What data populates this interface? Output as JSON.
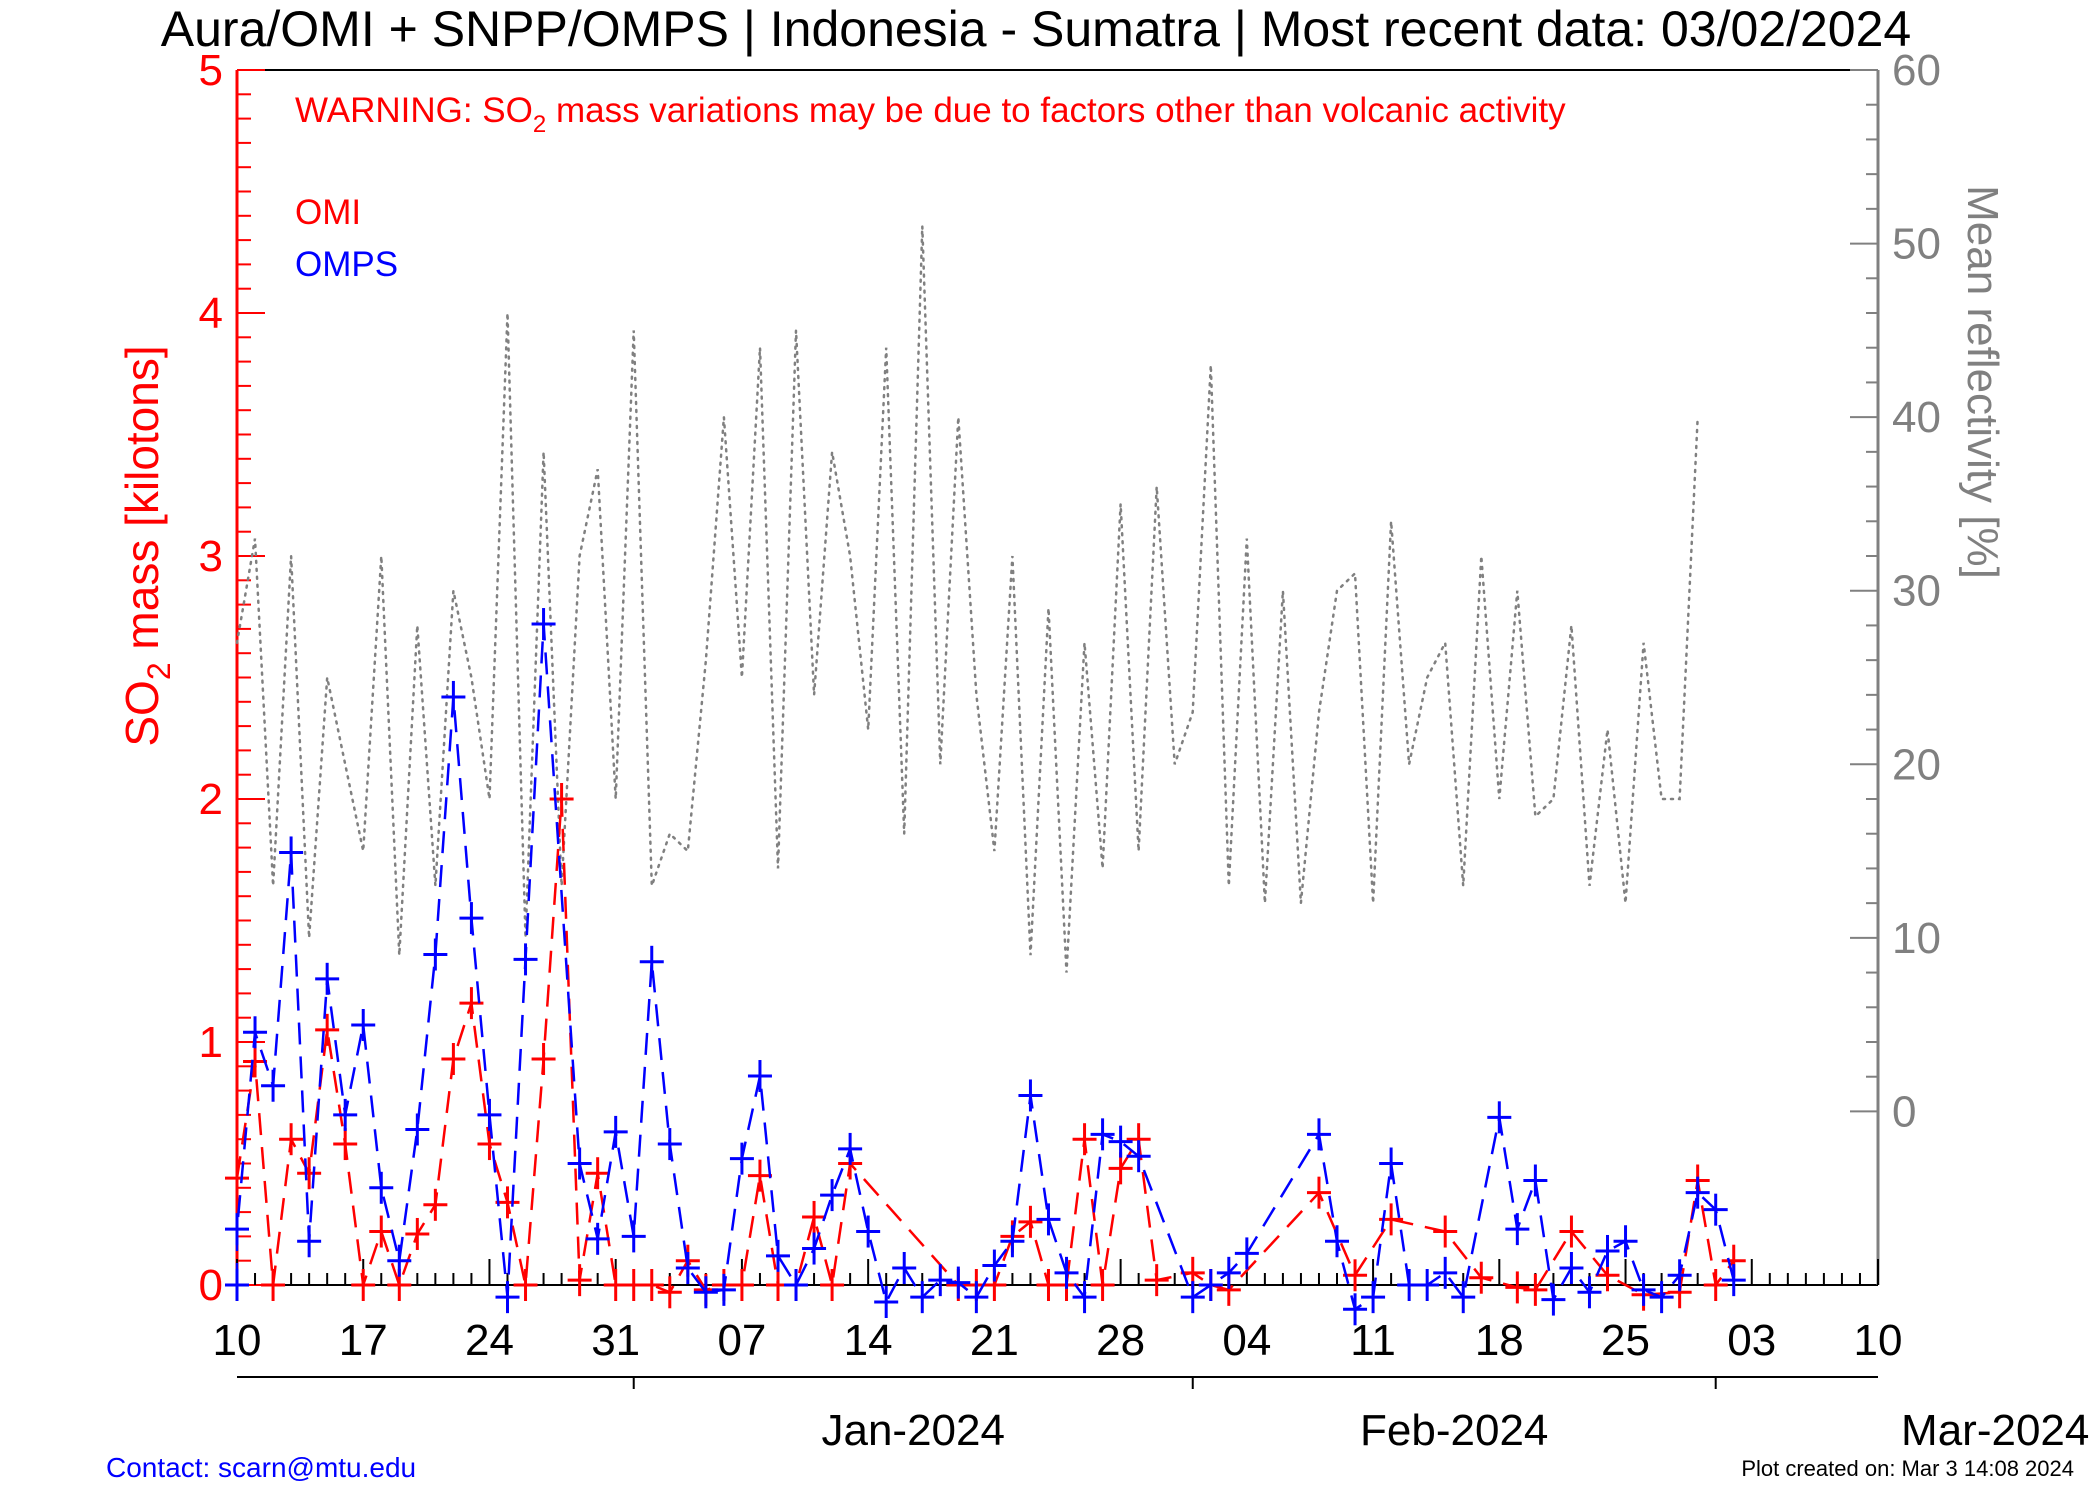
{
  "chart_data": {
    "type": "line",
    "title": "Aura/OMI + SNPP/OMPS | Indonesia - Sumatra | Most recent data: 03/02/2024",
    "warning": {
      "prefix": "WARNING: SO",
      "sub": "2",
      "suffix": " mass variations may be due to factors other than volcanic activity"
    },
    "ylabel_left": {
      "prefix": "SO",
      "sub": "2",
      "suffix": " mass [kilotons]"
    },
    "ylabel_right": "Mean reflectivity [%]",
    "ylim_left": [
      0,
      5
    ],
    "ylim_right": [
      -10,
      60
    ],
    "right_ticks": [
      0,
      10,
      20,
      30,
      40,
      50,
      60
    ],
    "left_ticks": [
      0,
      1,
      2,
      3,
      4,
      5
    ],
    "x_start": "2023-12-10",
    "x_end": "2024-03-10",
    "day_tick_labels": [
      "10",
      "17",
      "24",
      "31",
      "07",
      "14",
      "21",
      "28",
      "04",
      "11",
      "18",
      "25",
      "03",
      "10"
    ],
    "month_labels": [
      "Jan-2024",
      "Feb-2024",
      "Mar-2024"
    ],
    "series": [
      {
        "name": "OMI",
        "color": "#ff0000",
        "values": [
          [
            "2023-12-10",
            0.44
          ],
          [
            "2023-12-11",
            0.92
          ],
          [
            "2023-12-12",
            0.0
          ],
          [
            "2023-12-13",
            0.6
          ],
          [
            "2023-12-14",
            0.46
          ],
          [
            "2023-12-15",
            1.05
          ],
          [
            "2023-12-16",
            0.58
          ],
          [
            "2023-12-17",
            0.0
          ],
          [
            "2023-12-18",
            0.22
          ],
          [
            "2023-12-19",
            0.0
          ],
          [
            "2023-12-20",
            0.21
          ],
          [
            "2023-12-21",
            0.33
          ],
          [
            "2023-12-22",
            0.93
          ],
          [
            "2023-12-23",
            1.16
          ],
          [
            "2023-12-24",
            0.58
          ],
          [
            "2023-12-25",
            0.34
          ],
          [
            "2023-12-26",
            0.0
          ],
          [
            "2023-12-27",
            0.93
          ],
          [
            "2023-12-28",
            2.0
          ],
          [
            "2023-12-29",
            0.02
          ],
          [
            "2023-12-30",
            0.46
          ],
          [
            "2023-12-31",
            0.0
          ],
          [
            "2024-01-01",
            0.0
          ],
          [
            "2024-01-02",
            0.0
          ],
          [
            "2024-01-03",
            -0.03
          ],
          [
            "2024-01-04",
            0.1
          ],
          [
            "2024-01-05",
            -0.02
          ],
          [
            "2024-01-06",
            0.0
          ],
          [
            "2024-01-07",
            0.0
          ],
          [
            "2024-01-08",
            0.45
          ],
          [
            "2024-01-09",
            0.0
          ],
          [
            "2024-01-10",
            0.0
          ],
          [
            "2024-01-11",
            0.28
          ],
          [
            "2024-01-12",
            0.0
          ],
          [
            "2024-01-13",
            0.5
          ],
          [
            "2024-01-19",
            0.0
          ],
          [
            "2024-01-20",
            0.0
          ],
          [
            "2024-01-21",
            0.0
          ],
          [
            "2024-01-22",
            0.2
          ],
          [
            "2024-01-23",
            0.26
          ],
          [
            "2024-01-24",
            0.0
          ],
          [
            "2024-01-25",
            0.0
          ],
          [
            "2024-01-26",
            0.6
          ],
          [
            "2024-01-27",
            0.0
          ],
          [
            "2024-01-28",
            0.48
          ],
          [
            "2024-01-29",
            0.6
          ],
          [
            "2024-01-30",
            0.02
          ],
          [
            "2024-02-01",
            0.05
          ],
          [
            "2024-02-02",
            0.0
          ],
          [
            "2024-02-03",
            -0.02
          ],
          [
            "2024-02-08",
            0.38
          ],
          [
            "2024-02-10",
            0.04
          ],
          [
            "2024-02-12",
            0.27
          ],
          [
            "2024-02-15",
            0.22
          ],
          [
            "2024-02-17",
            0.03
          ],
          [
            "2024-02-19",
            -0.01
          ],
          [
            "2024-02-20",
            -0.02
          ],
          [
            "2024-02-22",
            0.22
          ],
          [
            "2024-02-24",
            0.04
          ],
          [
            "2024-02-26",
            -0.04
          ],
          [
            "2024-02-28",
            -0.03
          ],
          [
            "2024-02-29",
            0.43
          ],
          [
            "2024-03-01",
            0.0
          ],
          [
            "2024-03-02",
            0.1
          ]
        ]
      },
      {
        "name": "OMPS",
        "color": "#0000ff",
        "values": [
          [
            "2023-12-10",
            0.0
          ],
          [
            "2023-12-10",
            0.23
          ],
          [
            "2023-12-11",
            1.04
          ],
          [
            "2023-12-12",
            0.82
          ],
          [
            "2023-12-13",
            1.78
          ],
          [
            "2023-12-14",
            0.18
          ],
          [
            "2023-12-15",
            1.26
          ],
          [
            "2023-12-16",
            0.7
          ],
          [
            "2023-12-17",
            1.07
          ],
          [
            "2023-12-18",
            0.4
          ],
          [
            "2023-12-19",
            0.1
          ],
          [
            "2023-12-20",
            0.64
          ],
          [
            "2023-12-21",
            1.36
          ],
          [
            "2023-12-22",
            2.42
          ],
          [
            "2023-12-23",
            1.51
          ],
          [
            "2023-12-24",
            0.7
          ],
          [
            "2023-12-25",
            -0.05
          ],
          [
            "2023-12-26",
            1.34
          ],
          [
            "2023-12-27",
            2.72
          ],
          [
            "2023-12-29",
            0.5
          ],
          [
            "2023-12-30",
            0.19
          ],
          [
            "2023-12-31",
            0.63
          ],
          [
            "2024-01-01",
            0.2
          ],
          [
            "2024-01-02",
            1.33
          ],
          [
            "2024-01-03",
            0.58
          ],
          [
            "2024-01-04",
            0.07
          ],
          [
            "2024-01-05",
            -0.03
          ],
          [
            "2024-01-06",
            -0.02
          ],
          [
            "2024-01-07",
            0.52
          ],
          [
            "2024-01-08",
            0.86
          ],
          [
            "2024-01-09",
            0.12
          ],
          [
            "2024-01-10",
            0.0
          ],
          [
            "2024-01-11",
            0.15
          ],
          [
            "2024-01-12",
            0.37
          ],
          [
            "2024-01-13",
            0.56
          ],
          [
            "2024-01-14",
            0.22
          ],
          [
            "2024-01-15",
            -0.07
          ],
          [
            "2024-01-16",
            0.07
          ],
          [
            "2024-01-17",
            -0.05
          ],
          [
            "2024-01-18",
            0.02
          ],
          [
            "2024-01-19",
            0.01
          ],
          [
            "2024-01-20",
            -0.05
          ],
          [
            "2024-01-21",
            0.08
          ],
          [
            "2024-01-22",
            0.18
          ],
          [
            "2024-01-23",
            0.78
          ],
          [
            "2024-01-24",
            0.27
          ],
          [
            "2024-01-25",
            0.05
          ],
          [
            "2024-01-26",
            -0.05
          ],
          [
            "2024-01-27",
            0.62
          ],
          [
            "2024-01-28",
            0.59
          ],
          [
            "2024-01-29",
            0.53
          ],
          [
            "2024-02-01",
            -0.05
          ],
          [
            "2024-02-02",
            0.0
          ],
          [
            "2024-02-03",
            0.05
          ],
          [
            "2024-02-04",
            0.13
          ],
          [
            "2024-02-08",
            0.62
          ],
          [
            "2024-02-09",
            0.18
          ],
          [
            "2024-02-10",
            -0.1
          ],
          [
            "2024-02-11",
            -0.05
          ],
          [
            "2024-02-12",
            0.5
          ],
          [
            "2024-02-13",
            0.0
          ],
          [
            "2024-02-14",
            0.0
          ],
          [
            "2024-02-15",
            0.05
          ],
          [
            "2024-02-16",
            -0.05
          ],
          [
            "2024-02-18",
            0.69
          ],
          [
            "2024-02-19",
            0.23
          ],
          [
            "2024-02-20",
            0.43
          ],
          [
            "2024-02-21",
            -0.06
          ],
          [
            "2024-02-22",
            0.07
          ],
          [
            "2024-02-23",
            -0.03
          ],
          [
            "2024-02-24",
            0.14
          ],
          [
            "2024-02-25",
            0.18
          ],
          [
            "2024-02-26",
            -0.02
          ],
          [
            "2024-02-27",
            -0.05
          ],
          [
            "2024-02-28",
            0.04
          ],
          [
            "2024-02-29",
            0.38
          ],
          [
            "2024-03-01",
            0.31
          ],
          [
            "2024-03-02",
            0.02
          ]
        ]
      }
    ],
    "reflectivity": {
      "color": "#808080",
      "values": [
        [
          "2023-12-10",
          27
        ],
        [
          "2023-12-11",
          33
        ],
        [
          "2023-12-12",
          13
        ],
        [
          "2023-12-13",
          32
        ],
        [
          "2023-12-14",
          10
        ],
        [
          "2023-12-15",
          25
        ],
        [
          "2023-12-16",
          20
        ],
        [
          "2023-12-17",
          15
        ],
        [
          "2023-12-18",
          32
        ],
        [
          "2023-12-19",
          9
        ],
        [
          "2023-12-20",
          28
        ],
        [
          "2023-12-21",
          13
        ],
        [
          "2023-12-22",
          30
        ],
        [
          "2023-12-23",
          25
        ],
        [
          "2023-12-24",
          18
        ],
        [
          "2023-12-25",
          46
        ],
        [
          "2023-12-26",
          10
        ],
        [
          "2023-12-27",
          38
        ],
        [
          "2023-12-28",
          13
        ],
        [
          "2023-12-29",
          32
        ],
        [
          "2023-12-30",
          37
        ],
        [
          "2023-12-31",
          18
        ],
        [
          "2024-01-01",
          45
        ],
        [
          "2024-01-02",
          13
        ],
        [
          "2024-01-03",
          16
        ],
        [
          "2024-01-04",
          15
        ],
        [
          "2024-01-05",
          26
        ],
        [
          "2024-01-06",
          40
        ],
        [
          "2024-01-07",
          25
        ],
        [
          "2024-01-08",
          44
        ],
        [
          "2024-01-09",
          14
        ],
        [
          "2024-01-10",
          45
        ],
        [
          "2024-01-11",
          24
        ],
        [
          "2024-01-12",
          38
        ],
        [
          "2024-01-13",
          32
        ],
        [
          "2024-01-14",
          22
        ],
        [
          "2024-01-15",
          44
        ],
        [
          "2024-01-16",
          16
        ],
        [
          "2024-01-17",
          51
        ],
        [
          "2024-01-18",
          20
        ],
        [
          "2024-01-19",
          40
        ],
        [
          "2024-01-20",
          24
        ],
        [
          "2024-01-21",
          15
        ],
        [
          "2024-01-22",
          32
        ],
        [
          "2024-01-23",
          9
        ],
        [
          "2024-01-24",
          29
        ],
        [
          "2024-01-25",
          8
        ],
        [
          "2024-01-26",
          27
        ],
        [
          "2024-01-27",
          14
        ],
        [
          "2024-01-28",
          35
        ],
        [
          "2024-01-29",
          15
        ],
        [
          "2024-01-30",
          36
        ],
        [
          "2024-01-31",
          20
        ],
        [
          "2024-02-01",
          23
        ],
        [
          "2024-02-02",
          43
        ],
        [
          "2024-02-03",
          13
        ],
        [
          "2024-02-04",
          33
        ],
        [
          "2024-02-05",
          12
        ],
        [
          "2024-02-06",
          30
        ],
        [
          "2024-02-07",
          12
        ],
        [
          "2024-02-08",
          23
        ],
        [
          "2024-02-09",
          30
        ],
        [
          "2024-02-10",
          31
        ],
        [
          "2024-02-11",
          12
        ],
        [
          "2024-02-12",
          34
        ],
        [
          "2024-02-13",
          20
        ],
        [
          "2024-02-14",
          25
        ],
        [
          "2024-02-15",
          27
        ],
        [
          "2024-02-16",
          13
        ],
        [
          "2024-02-17",
          32
        ],
        [
          "2024-02-18",
          18
        ],
        [
          "2024-02-19",
          30
        ],
        [
          "2024-02-20",
          17
        ],
        [
          "2024-02-21",
          18
        ],
        [
          "2024-02-22",
          28
        ],
        [
          "2024-02-23",
          13
        ],
        [
          "2024-02-24",
          22
        ],
        [
          "2024-02-25",
          12
        ],
        [
          "2024-02-26",
          27
        ],
        [
          "2024-02-27",
          18
        ],
        [
          "2024-02-28",
          18
        ],
        [
          "2024-02-29",
          40
        ]
      ]
    }
  },
  "footer": {
    "contact": "Contact: scarn@mtu.edu",
    "created": "Plot created on: Mar  3 14:08 2024"
  }
}
